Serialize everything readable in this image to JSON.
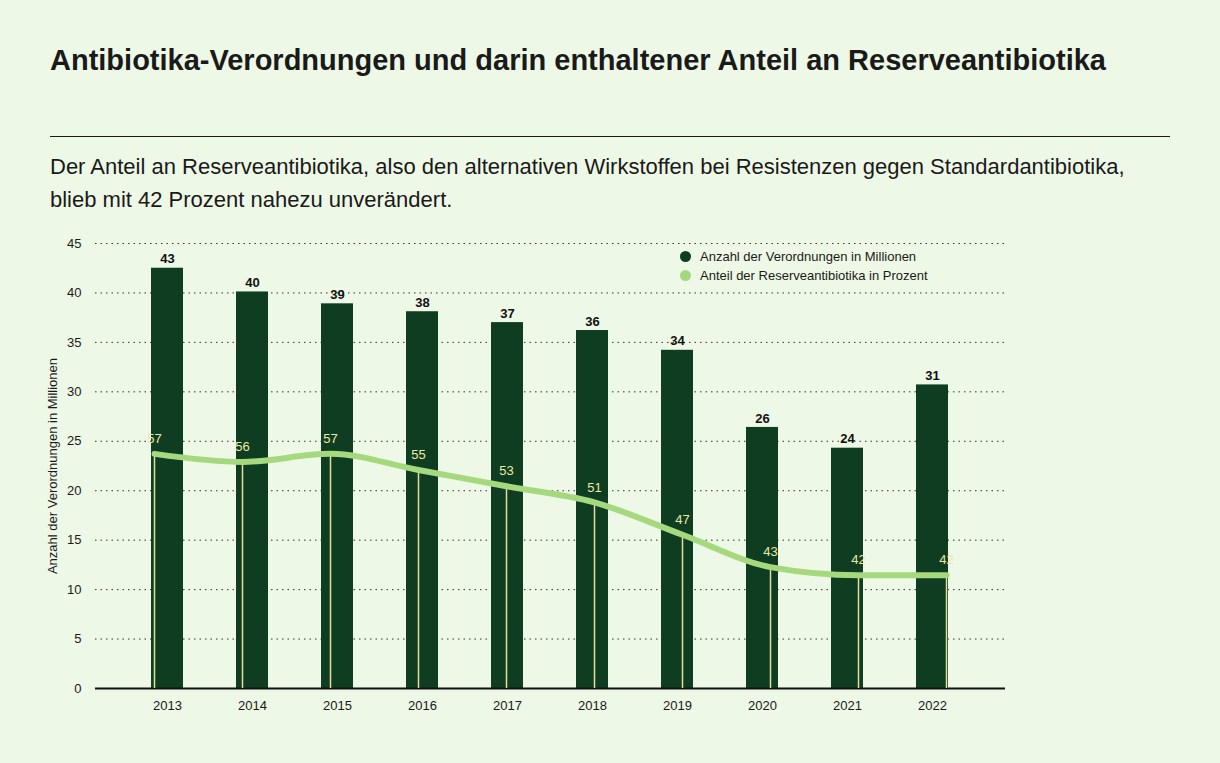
{
  "chart_data": {
    "type": "bar",
    "title": "Antibiotika-Verordnungen und darin enthaltener Anteil an Reserveantibiotika",
    "subtitle": "Der Anteil an Reserveantibiotika, also den alternativen Wirkstoffen bei Resistenzen gegen Standardantibiotika, blieb mit 42 Prozent nahezu unverändert.",
    "y_label": "Anzahl der Verordnungen in Millionen",
    "categories": [
      "2013",
      "2014",
      "2015",
      "2016",
      "2017",
      "2018",
      "2019",
      "2020",
      "2021",
      "2022"
    ],
    "series": [
      {
        "name": "Anzahl der Verordnungen in Millionen",
        "type": "bar",
        "color": "#0f3d22",
        "values": [
          42.5,
          40.1,
          38.9,
          38.1,
          37.0,
          36.2,
          34.2,
          26.4,
          24.3,
          30.7
        ],
        "value_labels": [
          "43",
          "40",
          "39",
          "38",
          "37",
          "36",
          "34",
          "26",
          "24",
          "31"
        ]
      },
      {
        "name": "Anteil der Reserveantibiotika in Prozent",
        "type": "line",
        "axis": "y2",
        "color": "#a6d97e",
        "values": [
          57,
          56,
          57,
          55,
          53,
          51,
          47,
          43,
          42,
          42
        ]
      }
    ],
    "ylim": [
      0,
      45
    ],
    "yticks": [
      0,
      5,
      10,
      15,
      20,
      25,
      30,
      35,
      40,
      45
    ],
    "y2lim": [
      28,
      83
    ],
    "y2ticks": [],
    "grid": true,
    "legend": "top-right",
    "data_labels": true
  }
}
